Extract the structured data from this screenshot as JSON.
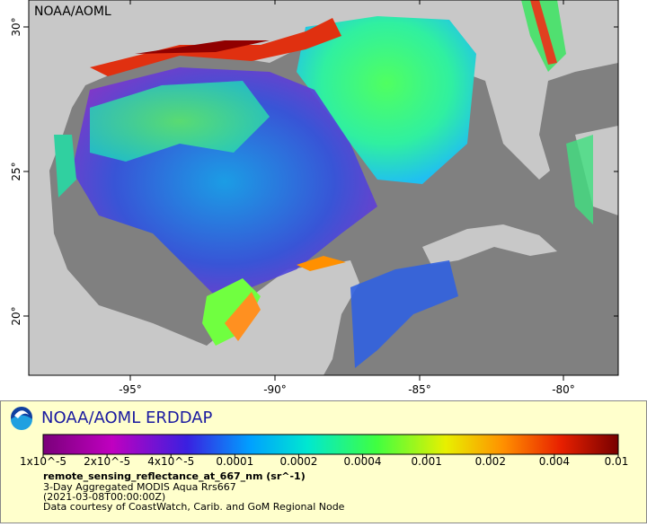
{
  "map": {
    "credit": "NOAA/AOML",
    "lon_labels": [
      "-95°",
      "-90°",
      "-85°",
      "-80°"
    ],
    "lat_labels": [
      "30°",
      "25°",
      "20°"
    ]
  },
  "legend": {
    "brand": "NOAA/AOML ERDDAP",
    "colorbar_labels": [
      "1x10^-5",
      "2x10^-5",
      "4x10^-5",
      "0.0001",
      "0.0002",
      "0.0004",
      "0.001",
      "0.002",
      "0.004",
      "0.01"
    ],
    "variable": "remote_sensing_reflectance_at_667_nm (sr^-1)",
    "lines": [
      "3-Day Aggregated MODIS Aqua Rrs667",
      "(2021-03-08T00:00:00Z)",
      "Data courtesy of CoastWatch, Carib. and GoM Regional Node"
    ]
  }
}
